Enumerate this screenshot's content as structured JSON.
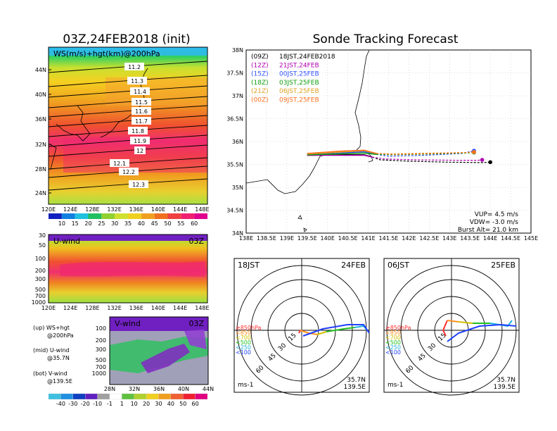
{
  "left_title": "03Z,24FEB2018 (init)",
  "right_title": "Sonde Tracking Forecast",
  "map_panel": {
    "label": "WS(m/s)+hgt(km)@200hPa",
    "x_ticks": [
      "120E",
      "124E",
      "128E",
      "132E",
      "136E",
      "140E",
      "144E",
      "148E"
    ],
    "y_ticks": [
      "44N",
      "40N",
      "36N",
      "32N",
      "28N",
      "24N"
    ],
    "contour_labels": [
      "11.2",
      "11.3",
      "11.4",
      "11.5",
      "11.6",
      "11.7",
      "11.8",
      "11.9",
      "12",
      "12.1",
      "12.2",
      "12.3"
    ]
  },
  "colorbar_ws": [
    "10",
    "15",
    "20",
    "25",
    "30",
    "35",
    "40",
    "45",
    "50",
    "55",
    "60"
  ],
  "uwind_panel": {
    "label": "U-wind",
    "time": "03Z",
    "y_ticks": [
      "30",
      "50",
      "100",
      "200",
      "300",
      "500",
      "700",
      "1000"
    ],
    "x_ticks": [
      "120E",
      "124E",
      "128E",
      "132E",
      "136E",
      "140E",
      "144E",
      "148E"
    ]
  },
  "vwind_panel": {
    "label": "V-wind",
    "time": "03Z",
    "y_ticks": [
      "100",
      "200",
      "300",
      "500",
      "700",
      "1000"
    ],
    "x_ticks": [
      "28N",
      "32N",
      "36N",
      "40N",
      "44N"
    ]
  },
  "legend_notes": [
    {
      "line1": "(up) WS+hgt",
      "line2": "@200hPa"
    },
    {
      "line1": "(mid) U-wind",
      "line2": "@35.7N"
    },
    {
      "line1": "(bot) V-wind",
      "line2": "@139.5E"
    }
  ],
  "colorbar_uv": [
    "-40",
    "-30",
    "-20",
    "-10",
    "-1",
    "1",
    "10",
    "20",
    "30",
    "40",
    "50",
    "60"
  ],
  "track_panel": {
    "y_ticks": [
      "38N",
      "37.5N",
      "37N",
      "36.5N",
      "36N",
      "35.5N",
      "35N",
      "34.5N",
      "34N"
    ],
    "x_ticks": [
      "138E",
      "138.5E",
      "139E",
      "139.5E",
      "140E",
      "140.5E",
      "141E",
      "141.5E",
      "142E",
      "142.5E",
      "143E",
      "143.5E",
      "144E",
      "144.5E",
      "145E"
    ],
    "legend": [
      {
        "code": "(09Z)",
        "text": "18JST,24FEB2018",
        "color": "#000000"
      },
      {
        "code": "(12Z)",
        "text": "21JST,24FEB",
        "color": "#b000b0"
      },
      {
        "code": "(15Z)",
        "text": "00JST,25FEB",
        "color": "#3050ff"
      },
      {
        "code": "(18Z)",
        "text": "03JST,25FEB",
        "color": "#10a010"
      },
      {
        "code": "(21Z)",
        "text": "06JST,25FEB",
        "color": "#e0a020"
      },
      {
        "code": "(00Z)",
        "text": "09JST,25FEB",
        "color": "#ff7020"
      }
    ],
    "params": [
      "VUP= 4.5 m/s",
      "VDW= -3.0 m/s",
      "Burst Alt= 21.0 km"
    ]
  },
  "polar_left": {
    "time": "18JST",
    "date": "24FEB",
    "lat": "35.7N",
    "lon": "139.5E"
  },
  "polar_right": {
    "time": "06JST",
    "date": "25FEB",
    "lat": "35.7N",
    "lon": "139.5E"
  },
  "polar_common": {
    "ring_labels": [
      "15",
      "30",
      "45",
      "60"
    ],
    "unit": "ms-1",
    "levels": [
      {
        "text": "≥850hPa",
        "color": "#ff3030"
      },
      {
        "text": "<850",
        "color": "#ff9020"
      },
      {
        "text": "<700",
        "color": "#d0c000"
      },
      {
        "text": "<500",
        "color": "#20c020"
      },
      {
        "text": "<250",
        "color": "#20b0e0"
      },
      {
        "text": "<100",
        "color": "#2040ff"
      }
    ]
  },
  "chart_data": [
    {
      "type": "heatmap",
      "title": "03Z,24FEB2018 (init)",
      "variable": "WS(m/s)+hgt(km)@200hPa",
      "xlim": [
        120,
        149
      ],
      "ylim": [
        22,
        47
      ],
      "contour_levels_km": [
        11.2,
        11.3,
        11.4,
        11.5,
        11.6,
        11.7,
        11.8,
        11.9,
        12,
        12.1,
        12.2,
        12.3
      ]
    },
    {
      "type": "heatmap",
      "variable": "U-wind",
      "time": "03Z",
      "xlim": [
        120,
        149
      ],
      "ylim_hPa": [
        1000,
        30
      ]
    },
    {
      "type": "heatmap",
      "variable": "V-wind",
      "time": "03Z",
      "xlim": [
        28,
        44
      ],
      "ylim_hPa": [
        1000,
        100
      ]
    },
    {
      "type": "line",
      "title": "Sonde Tracking Forecast",
      "xlim": [
        138,
        145
      ],
      "ylim": [
        34,
        38
      ],
      "series": [
        {
          "name": "(09Z) 18JST,24FEB2018",
          "color": "#000000",
          "x": [
            139.5,
            140.2,
            140.9,
            141.1,
            141.3,
            142.0,
            143.0,
            143.8,
            144.0
          ],
          "y": [
            35.7,
            35.71,
            35.71,
            35.66,
            35.6,
            35.57,
            35.55,
            35.54,
            35.55
          ]
        },
        {
          "name": "(12Z) 21JST,24FEB",
          "color": "#b000b0",
          "x": [
            139.5,
            140.2,
            140.9,
            141.1,
            141.4,
            142.2,
            143.2,
            143.7,
            143.8
          ],
          "y": [
            35.7,
            35.7,
            35.7,
            35.66,
            35.62,
            35.6,
            35.59,
            35.59,
            35.6
          ]
        },
        {
          "name": "(15Z) 00JST,25FEB",
          "color": "#3050ff",
          "x": [
            139.5,
            140.2,
            140.9,
            141.2,
            141.5,
            142.4,
            143.3,
            143.6
          ],
          "y": [
            35.72,
            35.74,
            35.78,
            35.72,
            35.68,
            35.7,
            35.74,
            35.8
          ]
        },
        {
          "name": "(18Z) 03JST,25FEB",
          "color": "#10a010",
          "x": [
            139.5,
            140.3,
            140.9,
            141.2,
            141.6,
            142.6,
            143.4,
            143.6
          ],
          "y": [
            35.71,
            35.73,
            35.75,
            35.72,
            35.71,
            35.73,
            35.75,
            35.76
          ]
        },
        {
          "name": "(21Z) 06JST,25FEB",
          "color": "#e0a020",
          "x": [
            139.5,
            140.3,
            140.9,
            141.2,
            141.6,
            142.6,
            143.4,
            143.6
          ],
          "y": [
            35.73,
            35.77,
            35.8,
            35.74,
            35.73,
            35.75,
            35.76,
            35.77
          ]
        },
        {
          "name": "(00Z) 09JST,25FEB",
          "color": "#ff7020",
          "x": [
            139.5,
            140.3,
            140.9,
            141.2,
            141.6,
            142.6,
            143.4,
            143.6
          ],
          "y": [
            35.74,
            35.79,
            35.81,
            35.74,
            35.72,
            35.74,
            35.76,
            35.77
          ]
        }
      ]
    }
  ]
}
